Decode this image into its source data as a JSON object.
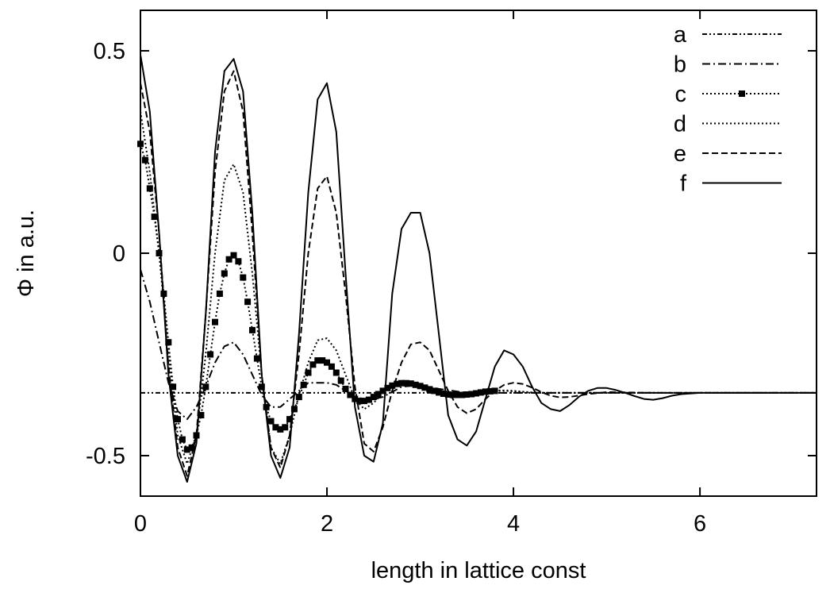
{
  "chart_data": {
    "type": "line",
    "title": "",
    "xlabel": "length in lattice const",
    "ylabel": "Φ in a.u.",
    "xlim": [
      0,
      7.25
    ],
    "ylim": [
      -0.6,
      0.6
    ],
    "x_ticks": [
      {
        "value": 0,
        "label": "0"
      },
      {
        "value": 2,
        "label": "2"
      },
      {
        "value": 4,
        "label": "4"
      },
      {
        "value": 6,
        "label": "6"
      }
    ],
    "y_ticks": [
      {
        "value": -0.5,
        "label": "-0.5"
      },
      {
        "value": 0,
        "label": "0"
      },
      {
        "value": 0.5,
        "label": "0.5"
      }
    ],
    "grid": false,
    "legend_position": "top-right",
    "baseline": -0.345,
    "series": [
      {
        "name": "a",
        "style": "dash-dot-dot",
        "color": "#000000",
        "markers": false,
        "x": [
          0,
          7.25
        ],
        "y": [
          -0.345,
          -0.345
        ]
      },
      {
        "name": "b",
        "style": "dash-dot",
        "color": "#000000",
        "markers": false,
        "x": [
          0,
          0.1,
          0.2,
          0.3,
          0.4,
          0.5,
          0.6,
          0.7,
          0.8,
          0.9,
          1.0,
          1.1,
          1.2,
          1.3,
          1.4,
          1.5,
          1.6,
          1.7,
          1.8,
          1.9,
          2.0,
          2.1,
          2.2,
          2.3,
          2.4,
          2.5,
          2.6,
          2.8,
          3.0,
          3.2,
          3.5,
          4.0,
          5.0,
          7.25
        ],
        "y": [
          -0.04,
          -0.12,
          -0.22,
          -0.32,
          -0.39,
          -0.41,
          -0.38,
          -0.33,
          -0.27,
          -0.23,
          -0.22,
          -0.25,
          -0.3,
          -0.35,
          -0.38,
          -0.38,
          -0.36,
          -0.34,
          -0.32,
          -0.32,
          -0.32,
          -0.325,
          -0.34,
          -0.355,
          -0.36,
          -0.36,
          -0.355,
          -0.33,
          -0.325,
          -0.335,
          -0.345,
          -0.345,
          -0.345,
          -0.345
        ]
      },
      {
        "name": "c",
        "style": "dotted-squares",
        "color": "#000000",
        "markers": true,
        "x": [
          0,
          0.05,
          0.1,
          0.15,
          0.2,
          0.25,
          0.3,
          0.35,
          0.4,
          0.45,
          0.5,
          0.55,
          0.6,
          0.65,
          0.7,
          0.75,
          0.8,
          0.85,
          0.9,
          0.95,
          1.0,
          1.05,
          1.1,
          1.15,
          1.2,
          1.25,
          1.3,
          1.35,
          1.4,
          1.45,
          1.5,
          1.55,
          1.6,
          1.65,
          1.7,
          1.75,
          1.8,
          1.85,
          1.9,
          1.95,
          2.0,
          2.05,
          2.1,
          2.15,
          2.2,
          2.25,
          2.3,
          2.35,
          2.4,
          2.45,
          2.5,
          2.55,
          2.6,
          2.65,
          2.7,
          2.75,
          2.8,
          2.85,
          2.9,
          2.95,
          3.0,
          3.05,
          3.1,
          3.15,
          3.2,
          3.25,
          3.3,
          3.35,
          3.4,
          3.45,
          3.5,
          3.55,
          3.6,
          3.65,
          3.7,
          3.75,
          3.8,
          3.85,
          3.9,
          3.95,
          4.0,
          4.05,
          4.1,
          4.15,
          4.2,
          4.25,
          4.3,
          4.35,
          4.4,
          4.45,
          4.5,
          4.55,
          4.6,
          4.65,
          4.7,
          4.75,
          4.8,
          4.85,
          4.9,
          4.95,
          5.0,
          5.05,
          5.1,
          5.15,
          5.2,
          5.25,
          5.3,
          5.35,
          5.4,
          5.45,
          5.5,
          5.55,
          5.6,
          5.65,
          5.7,
          5.75,
          5.8,
          5.85,
          5.9,
          5.95,
          6.0,
          6.05,
          6.1,
          6.15,
          6.2,
          6.25,
          6.3,
          6.35,
          6.4,
          6.45,
          6.5,
          6.55,
          6.6,
          6.65,
          6.7,
          6.75,
          6.8,
          6.85,
          6.9,
          6.95,
          7.0,
          7.05,
          7.1,
          7.15,
          7.2,
          7.25
        ],
        "y": [
          0.27,
          0.23,
          0.16,
          0.09,
          0.0,
          -0.1,
          -0.22,
          -0.33,
          -0.41,
          -0.46,
          -0.485,
          -0.48,
          -0.45,
          -0.4,
          -0.33,
          -0.25,
          -0.17,
          -0.1,
          -0.05,
          -0.015,
          -0.005,
          -0.02,
          -0.06,
          -0.12,
          -0.19,
          -0.26,
          -0.33,
          -0.38,
          -0.415,
          -0.43,
          -0.435,
          -0.43,
          -0.41,
          -0.385,
          -0.355,
          -0.325,
          -0.295,
          -0.275,
          -0.265,
          -0.265,
          -0.27,
          -0.28,
          -0.295,
          -0.315,
          -0.335,
          -0.35,
          -0.36,
          -0.365,
          -0.365,
          -0.362,
          -0.355,
          -0.348,
          -0.34,
          -0.333,
          -0.327,
          -0.323,
          -0.321,
          -0.321,
          -0.322,
          -0.325,
          -0.328,
          -0.332,
          -0.336,
          -0.34,
          -0.344,
          -0.347,
          -0.349,
          -0.35,
          -0.35,
          -0.35,
          -0.349,
          -0.348,
          -0.346,
          -0.344,
          -0.342,
          -0.341,
          -0.34,
          -0.339,
          -0.339,
          -0.339,
          -0.34,
          -0.341,
          -0.342,
          -0.343,
          -0.344,
          -0.345,
          -0.345,
          -0.345,
          -0.345,
          -0.345,
          -0.345,
          -0.345,
          -0.345,
          -0.345,
          -0.345,
          -0.345,
          -0.345,
          -0.345,
          -0.345,
          -0.345,
          -0.345,
          -0.345,
          -0.345,
          -0.345,
          -0.345,
          -0.345,
          -0.345,
          -0.345,
          -0.345,
          -0.345,
          -0.345,
          -0.345,
          -0.345,
          -0.345,
          -0.345,
          -0.345,
          -0.345,
          -0.345,
          -0.345,
          -0.345,
          -0.345,
          -0.345,
          -0.345,
          -0.345,
          -0.345,
          -0.345,
          -0.345,
          -0.345,
          -0.345,
          -0.345,
          -0.345,
          -0.345,
          -0.345,
          -0.345,
          -0.345,
          -0.345,
          -0.345,
          -0.345,
          -0.345,
          -0.345,
          -0.345,
          -0.345,
          -0.345,
          -0.345,
          -0.345,
          -0.345
        ]
      },
      {
        "name": "d",
        "style": "dotted",
        "color": "#000000",
        "markers": false,
        "x": [
          0,
          0.1,
          0.2,
          0.3,
          0.4,
          0.5,
          0.6,
          0.7,
          0.8,
          0.9,
          1.0,
          1.1,
          1.2,
          1.3,
          1.4,
          1.5,
          1.6,
          1.7,
          1.8,
          1.9,
          2.0,
          2.1,
          2.2,
          2.3,
          2.4,
          2.5,
          2.6,
          2.7,
          2.8,
          2.9,
          3.0,
          3.1,
          3.2,
          3.3,
          3.4,
          3.5,
          3.6,
          3.7,
          3.8,
          3.9,
          4.0,
          4.2,
          4.4,
          4.6,
          5.0,
          7.25
        ],
        "y": [
          0.35,
          0.2,
          0.0,
          -0.25,
          -0.45,
          -0.52,
          -0.45,
          -0.25,
          0.0,
          0.18,
          0.22,
          0.15,
          -0.05,
          -0.3,
          -0.48,
          -0.52,
          -0.45,
          -0.35,
          -0.27,
          -0.215,
          -0.21,
          -0.24,
          -0.3,
          -0.36,
          -0.385,
          -0.37,
          -0.345,
          -0.325,
          -0.315,
          -0.318,
          -0.325,
          -0.335,
          -0.345,
          -0.35,
          -0.35,
          -0.348,
          -0.345,
          -0.342,
          -0.34,
          -0.34,
          -0.341,
          -0.344,
          -0.345,
          -0.345,
          -0.345,
          -0.345
        ]
      },
      {
        "name": "e",
        "style": "dashed",
        "color": "#000000",
        "markers": false,
        "x": [
          0,
          0.1,
          0.2,
          0.3,
          0.4,
          0.5,
          0.6,
          0.7,
          0.8,
          0.9,
          1.0,
          1.1,
          1.2,
          1.3,
          1.4,
          1.5,
          1.6,
          1.7,
          1.8,
          1.9,
          2.0,
          2.1,
          2.2,
          2.3,
          2.4,
          2.5,
          2.6,
          2.7,
          2.8,
          2.9,
          3.0,
          3.1,
          3.2,
          3.3,
          3.4,
          3.5,
          3.6,
          3.7,
          3.8,
          3.9,
          4.0,
          4.1,
          4.2,
          4.3,
          4.4,
          4.5,
          4.6,
          4.8,
          5.0,
          5.5,
          7.25
        ],
        "y": [
          0.42,
          0.3,
          0.05,
          -0.28,
          -0.48,
          -0.55,
          -0.45,
          -0.15,
          0.2,
          0.4,
          0.45,
          0.35,
          0.05,
          -0.3,
          -0.48,
          -0.53,
          -0.45,
          -0.25,
          0.0,
          0.16,
          0.19,
          0.1,
          -0.1,
          -0.33,
          -0.47,
          -0.49,
          -0.43,
          -0.34,
          -0.27,
          -0.225,
          -0.22,
          -0.24,
          -0.29,
          -0.34,
          -0.38,
          -0.395,
          -0.385,
          -0.36,
          -0.34,
          -0.325,
          -0.32,
          -0.323,
          -0.332,
          -0.343,
          -0.352,
          -0.356,
          -0.355,
          -0.348,
          -0.343,
          -0.345,
          -0.345
        ]
      },
      {
        "name": "f",
        "style": "solid",
        "color": "#000000",
        "markers": false,
        "x": [
          0,
          0.1,
          0.2,
          0.3,
          0.4,
          0.5,
          0.6,
          0.7,
          0.8,
          0.9,
          1.0,
          1.1,
          1.2,
          1.3,
          1.4,
          1.5,
          1.6,
          1.7,
          1.8,
          1.9,
          2.0,
          2.1,
          2.2,
          2.3,
          2.4,
          2.5,
          2.6,
          2.7,
          2.8,
          2.9,
          3.0,
          3.1,
          3.2,
          3.3,
          3.4,
          3.5,
          3.6,
          3.7,
          3.8,
          3.9,
          4.0,
          4.1,
          4.2,
          4.3,
          4.4,
          4.5,
          4.6,
          4.7,
          4.8,
          4.9,
          5.0,
          5.1,
          5.2,
          5.3,
          5.4,
          5.5,
          5.6,
          5.7,
          5.8,
          6.0,
          6.5,
          7.25
        ],
        "y": [
          0.49,
          0.35,
          0.05,
          -0.3,
          -0.5,
          -0.565,
          -0.47,
          -0.15,
          0.25,
          0.45,
          0.48,
          0.4,
          0.1,
          -0.3,
          -0.5,
          -0.555,
          -0.48,
          -0.2,
          0.15,
          0.38,
          0.42,
          0.3,
          -0.05,
          -0.38,
          -0.5,
          -0.515,
          -0.42,
          -0.1,
          0.06,
          0.1,
          0.1,
          0.0,
          -0.2,
          -0.4,
          -0.46,
          -0.475,
          -0.44,
          -0.36,
          -0.28,
          -0.24,
          -0.25,
          -0.28,
          -0.33,
          -0.37,
          -0.385,
          -0.39,
          -0.375,
          -0.355,
          -0.34,
          -0.333,
          -0.333,
          -0.338,
          -0.345,
          -0.353,
          -0.36,
          -0.362,
          -0.358,
          -0.352,
          -0.348,
          -0.345,
          -0.345,
          -0.345
        ]
      }
    ]
  }
}
